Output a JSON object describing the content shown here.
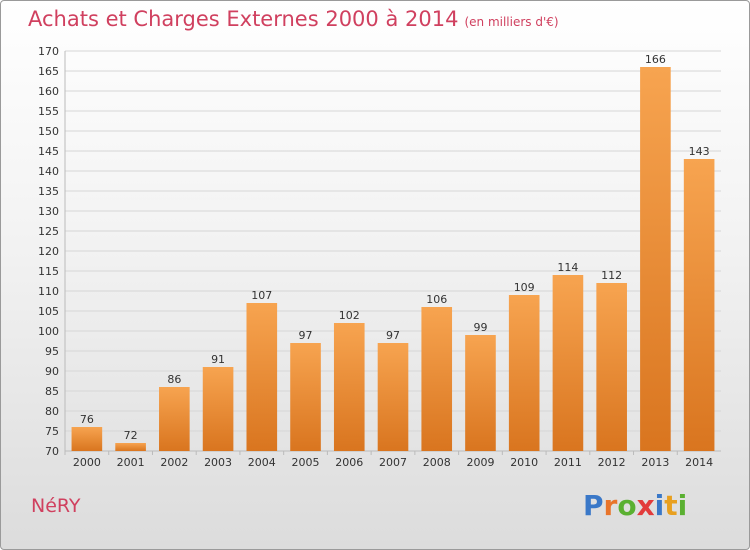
{
  "title": "Achats et Charges Externes 2000 à 2014",
  "unit": "(en milliers d'€)",
  "commune": "NéRY",
  "logo": {
    "letters": [
      "P",
      "r",
      "o",
      "x",
      "i",
      "t",
      "i"
    ],
    "colors": [
      "#3a78c8",
      "#e8742a",
      "#5ab031",
      "#e23b3b",
      "#3a78c8",
      "#e8a020",
      "#5ab031"
    ]
  },
  "colors": {
    "bar_top": "#f7a450",
    "bar_bottom": "#d9751f",
    "title": "#d0405f"
  },
  "chart_data": {
    "type": "bar",
    "categories": [
      "2000",
      "2001",
      "2002",
      "2003",
      "2004",
      "2005",
      "2006",
      "2007",
      "2008",
      "2009",
      "2010",
      "2011",
      "2012",
      "2013",
      "2014"
    ],
    "values": [
      76,
      72,
      86,
      91,
      107,
      97,
      102,
      97,
      106,
      99,
      109,
      114,
      112,
      166,
      143
    ],
    "title": "Achats et Charges Externes 2000 à 2014",
    "ylim": [
      70,
      170
    ],
    "yticks": [
      70,
      75,
      80,
      85,
      90,
      95,
      100,
      105,
      110,
      115,
      120,
      125,
      130,
      135,
      140,
      145,
      150,
      155,
      160,
      165,
      170
    ],
    "grid": true
  }
}
